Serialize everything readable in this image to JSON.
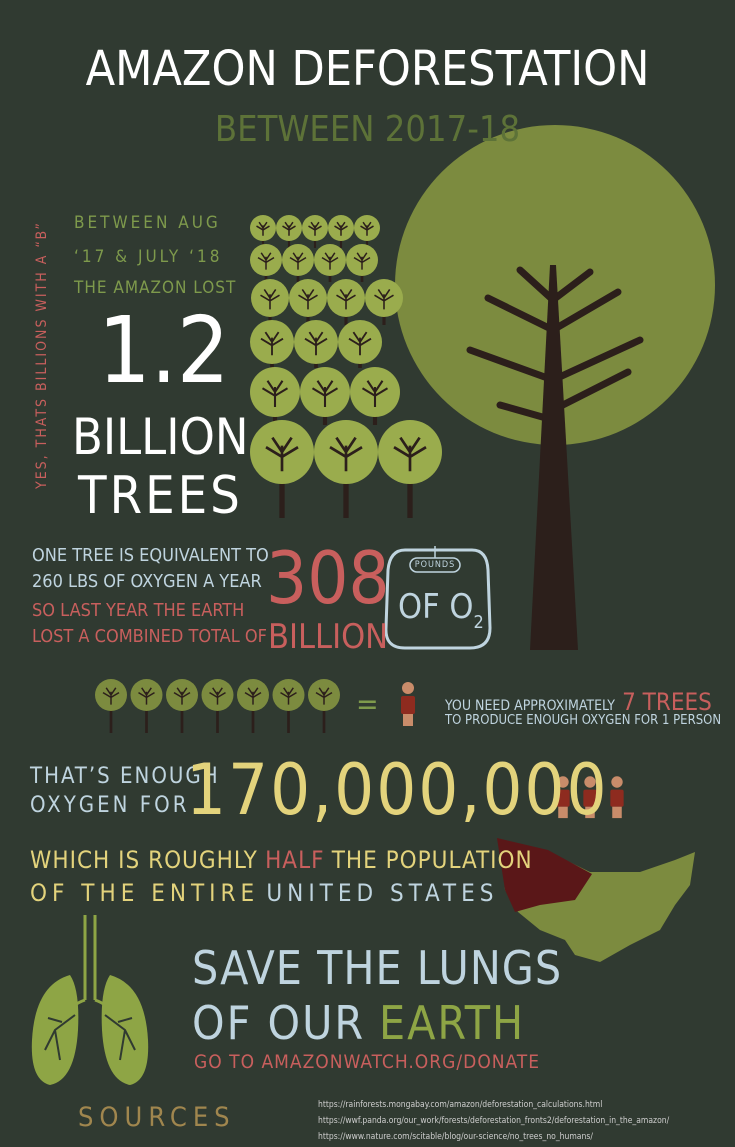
{
  "header": {
    "title": "AMAZON DEFORESTATION",
    "subtitle": "BETWEEN 2017-18"
  },
  "side_note": "YES, THATS BILLIONS WITH A “B”",
  "intro": {
    "lines": [
      "BETWEEN AUG",
      "‘17 & JULY ‘18",
      "THE AMAZON LOST"
    ],
    "number": "1.2",
    "unit": "BILLION",
    "noun": "TREES"
  },
  "oxygen": {
    "lines": [
      "ONE TREE IS EQUIVALENT TO",
      "260 LBS OF OXYGEN A YEAR",
      "SO LAST YEAR THE EARTH",
      "LOST A COMBINED TOTAL OF"
    ],
    "number": "308",
    "unit": "BILLION",
    "weight_label": "POUNDS",
    "weight_text": "OF O",
    "weight_sub": "2"
  },
  "per_person": {
    "equals": "=",
    "line1": "YOU NEED APPROXIMATELY",
    "highlight": "7 TREES",
    "line2": "TO PRODUCE ENOUGH OXYGEN FOR 1 PERSON"
  },
  "people": {
    "lines": [
      "THAT’S ENOUGH",
      "OXYGEN FOR"
    ],
    "number": "170,000,000"
  },
  "population": {
    "line1": [
      "WHICH IS ROUGHLY",
      "HALF",
      "THE POPULATION"
    ],
    "line2": [
      "OF THE ENTIRE",
      "UNITED STATES"
    ]
  },
  "cta": {
    "line1": "SAVE THE LUNGS",
    "line2": [
      "OF OUR",
      "EARTH"
    ],
    "link": "GO TO AMAZONWATCH.ORG/DONATE"
  },
  "sources": {
    "title": "SOURCES",
    "links": [
      "https://rainforests.mongabay.com/amazon/deforestation_calculations.html",
      "https://wwf.panda.org/our_work/forests/deforestation_fronts2/deforestation_in_the_amazon/",
      "https://www.nature.com/scitable/blog/our-science/no_trees_no_humans/"
    ]
  }
}
